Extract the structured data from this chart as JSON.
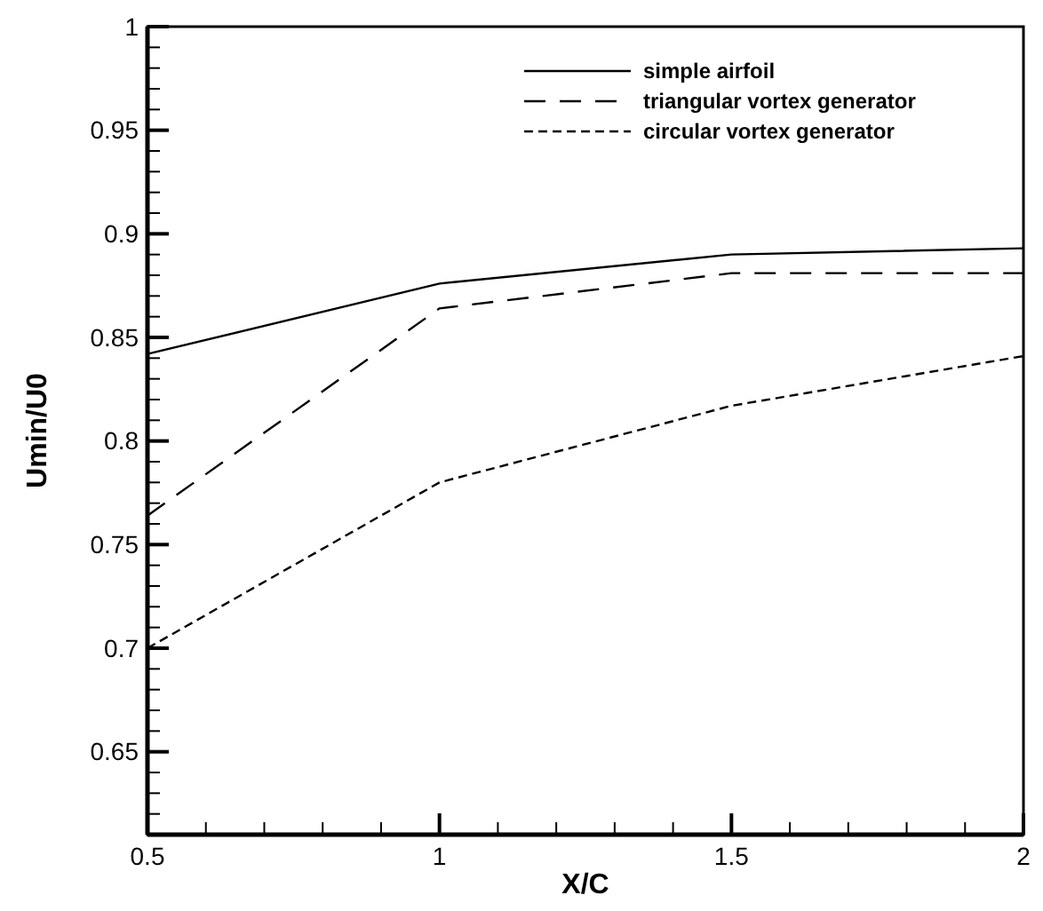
{
  "chart_data": {
    "type": "line",
    "xlabel": "X/C",
    "ylabel": "Umin/U0",
    "x": [
      0.5,
      1,
      1.5,
      2
    ],
    "series": [
      {
        "name": "simple airfoil",
        "color": "#000000",
        "line_style": "solid",
        "values": [
          0.842,
          0.876,
          0.89,
          0.893
        ]
      },
      {
        "name": "triangular vortex generator",
        "color": "#000000",
        "line_style": "dashed",
        "values": [
          0.764,
          0.864,
          0.881,
          0.881
        ]
      },
      {
        "name": "circular vortex generator",
        "color": "#000000",
        "line_style": "dotted",
        "values": [
          0.7,
          0.78,
          0.817,
          0.841
        ]
      }
    ],
    "xlim": [
      0.5,
      2
    ],
    "xticks": [
      0.5,
      1,
      1.5,
      2
    ],
    "ylim": [
      0.61,
      1
    ],
    "yticks": [
      0.65,
      0.7,
      0.75,
      0.8,
      0.85,
      0.9,
      0.95,
      1
    ],
    "grid": false,
    "legend": "top right"
  }
}
